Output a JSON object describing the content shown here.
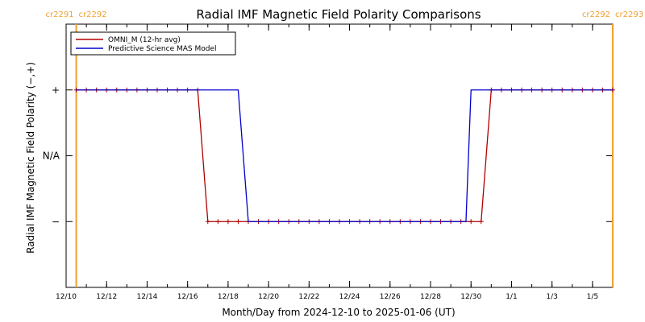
{
  "chart_data": {
    "type": "line",
    "title": "Radial IMF Magnetic Field Polarity Comparisons",
    "xlabel": "Month/Day from 2024-12-10 to 2025-01-06 (UT)",
    "ylabel": "Radial IMF Magnetic Field Polarity (−,+)",
    "x_range": [
      "2024-12-10T00:00",
      "2025-01-06T00:00"
    ],
    "ylim": [
      -2,
      2
    ],
    "y_ticks": [
      {
        "value": 1,
        "label": "+"
      },
      {
        "value": 0,
        "label": "N/A"
      },
      {
        "value": -1,
        "label": "−"
      }
    ],
    "x_ticks": [
      {
        "date": "2024-12-10T00:00",
        "label": "12/10"
      },
      {
        "date": "2024-12-12T00:00",
        "label": "12/12"
      },
      {
        "date": "2024-12-14T00:00",
        "label": "12/14"
      },
      {
        "date": "2024-12-16T00:00",
        "label": "12/16"
      },
      {
        "date": "2024-12-18T00:00",
        "label": "12/18"
      },
      {
        "date": "2024-12-20T00:00",
        "label": "12/20"
      },
      {
        "date": "2024-12-22T00:00",
        "label": "12/22"
      },
      {
        "date": "2024-12-24T00:00",
        "label": "12/24"
      },
      {
        "date": "2024-12-26T00:00",
        "label": "12/26"
      },
      {
        "date": "2024-12-28T00:00",
        "label": "12/28"
      },
      {
        "date": "2024-12-30T00:00",
        "label": "12/30"
      },
      {
        "date": "2025-01-01T00:00",
        "label": "1/1"
      },
      {
        "date": "2025-01-03T00:00",
        "label": "1/3"
      },
      {
        "date": "2025-01-05T00:00",
        "label": "1/5"
      }
    ],
    "carrington_markers": [
      {
        "date": "2024-12-10T12:00",
        "left_label": "cr2291",
        "right_label": "cr2292"
      },
      {
        "date": "2025-01-06T00:00",
        "left_label": "cr2292",
        "right_label": "cr2293"
      }
    ],
    "legend_position": "top-left",
    "series": [
      {
        "name": "OMNI_M (12-hr avg)",
        "color": "#b00000",
        "markers": true,
        "points": [
          [
            "2024-12-10T12:00",
            1
          ],
          [
            "2024-12-16T12:00",
            1
          ],
          [
            "2024-12-17T00:00",
            -1
          ],
          [
            "2024-12-30T12:00",
            -1
          ],
          [
            "2024-12-31T00:00",
            1
          ],
          [
            "2025-01-06T00:00",
            1
          ]
        ]
      },
      {
        "name": "Predictive Science MAS Model",
        "color": "#0000cc",
        "markers": false,
        "points": [
          [
            "2024-12-10T12:00",
            1
          ],
          [
            "2024-12-18T12:00",
            1
          ],
          [
            "2024-12-19T00:00",
            -1
          ],
          [
            "2024-12-29T18:00",
            -1
          ],
          [
            "2024-12-30T00:00",
            1
          ],
          [
            "2025-01-06T00:00",
            1
          ]
        ]
      }
    ]
  }
}
